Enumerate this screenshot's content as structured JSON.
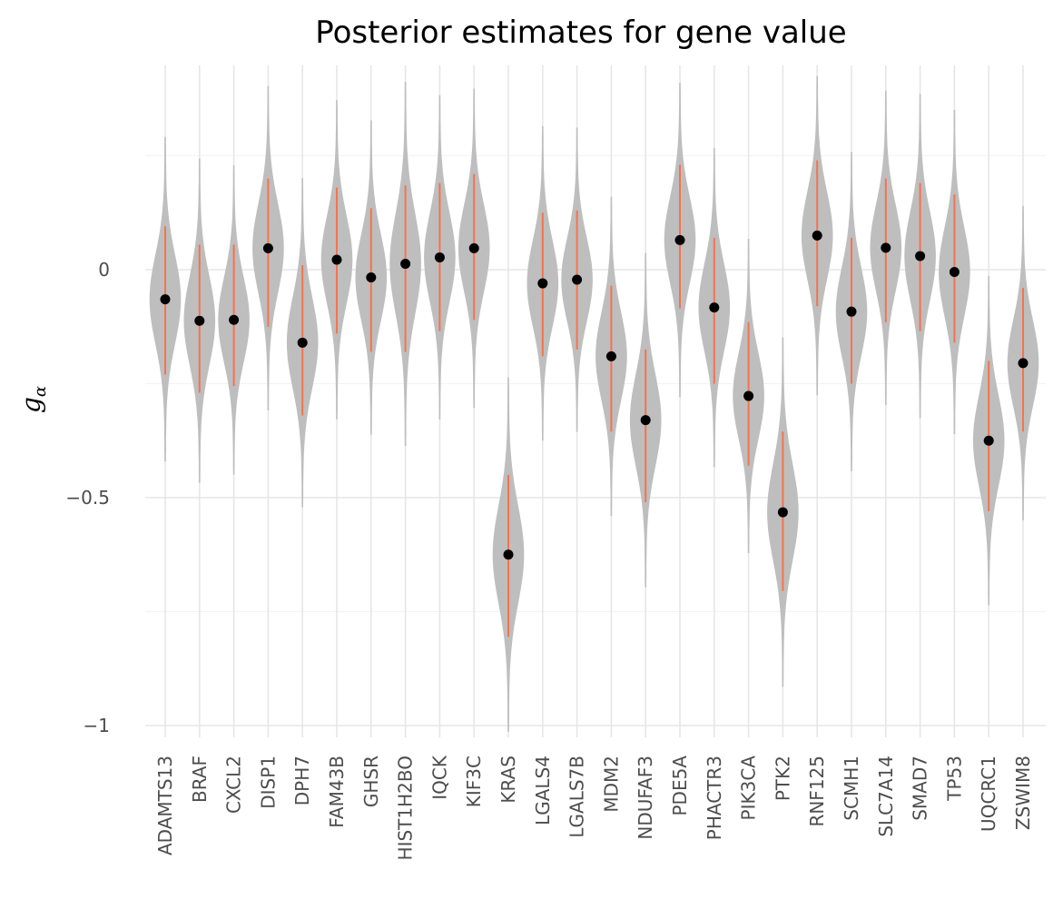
{
  "chart_data": {
    "type": "violin",
    "title": "Posterior estimates for gene value",
    "xlabel": "",
    "ylabel": "g",
    "ylabel_subscript": "α",
    "ylim": [
      -1,
      0.45
    ],
    "yticks": [
      {
        "value": 0,
        "label": "0"
      },
      {
        "value": -0.5,
        "label": "−0.5"
      },
      {
        "value": -1,
        "label": "−1"
      }
    ],
    "y_minor_gridlines": [
      0.25,
      -0.25,
      -0.75
    ],
    "grid": true,
    "colors": {
      "violin": "#bebebe",
      "interval": "#f4734f",
      "point": "#000000",
      "grid": "#e6e6e6"
    },
    "categories": [
      "ADAMTS13",
      "BRAF",
      "CXCL2",
      "DISP1",
      "DPH7",
      "FAM43B",
      "GHSR",
      "HIST1H2BO",
      "IQCK",
      "KIF3C",
      "KRAS",
      "LGALS4",
      "LGALS7B",
      "MDM2",
      "NDUFAF3",
      "PDE5A",
      "PHACTR3",
      "PIK3CA",
      "PTK2",
      "RNF125",
      "SCMH1",
      "SLC7A14",
      "SMAD7",
      "TP53",
      "UQCRC1",
      "ZSWIM8"
    ],
    "series": [
      {
        "values": [
          -0.065,
          -0.112,
          -0.11,
          0.047,
          -0.16,
          0.022,
          -0.017,
          0.013,
          0.027,
          0.047,
          -0.625,
          -0.03,
          -0.022,
          -0.19,
          -0.33,
          0.065,
          -0.083,
          -0.277,
          -0.532,
          0.075,
          -0.092,
          0.048,
          0.03,
          -0.005,
          -0.375,
          -0.205
        ]
      },
      {
        "values": [
          -0.23,
          -0.27,
          -0.255,
          -0.125,
          -0.32,
          -0.14,
          -0.18,
          -0.18,
          -0.135,
          -0.11,
          -0.805,
          -0.19,
          -0.175,
          -0.355,
          -0.51,
          -0.085,
          -0.25,
          -0.43,
          -0.705,
          -0.08,
          -0.25,
          -0.115,
          -0.135,
          -0.16,
          -0.53,
          -0.355
        ]
      },
      {
        "values": [
          0.095,
          0.055,
          0.055,
          0.2,
          0.01,
          0.18,
          0.135,
          0.185,
          0.19,
          0.21,
          -0.45,
          0.125,
          0.13,
          -0.035,
          -0.175,
          0.23,
          0.07,
          -0.115,
          -0.355,
          0.24,
          0.07,
          0.2,
          0.19,
          0.165,
          -0.2,
          -0.04
        ]
      }
    ]
  }
}
